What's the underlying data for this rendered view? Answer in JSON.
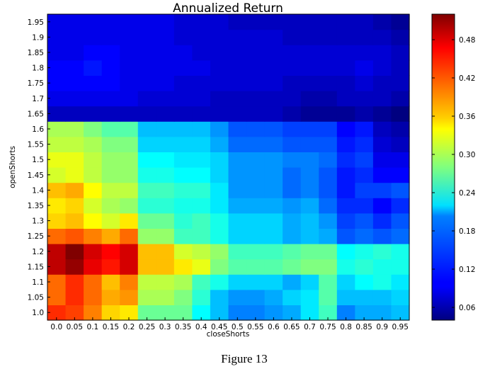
{
  "chart_data": {
    "type": "heatmap",
    "title": "Annualized Return",
    "xlabel": "closeShorts",
    "ylabel": "openShorts",
    "x_categories": [
      "0.0",
      "0.05",
      "0.1",
      "0.15",
      "0.2",
      "0.25",
      "0.3",
      "0.35",
      "0.4",
      "0.45",
      "0.5",
      "0.55",
      "0.6",
      "0.65",
      "0.7",
      "0.75",
      "0.8",
      "0.85",
      "0.9",
      "0.95"
    ],
    "y_categories": [
      "1.0",
      "1.05",
      "1.1",
      "1.15",
      "1.2",
      "1.25",
      "1.3",
      "1.35",
      "1.4",
      "1.45",
      "1.5",
      "1.55",
      "1.6",
      "1.65",
      "1.7",
      "1.75",
      "1.8",
      "1.85",
      "1.9",
      "1.95"
    ],
    "value_range": [
      0.04,
      0.52
    ],
    "colormap": "jet",
    "colorbar_ticks": [
      "0.06",
      "0.12",
      "0.18",
      "0.24",
      "0.30",
      "0.36",
      "0.42",
      "0.48"
    ],
    "colorbar_tick_values": [
      0.06,
      0.12,
      0.18,
      0.24,
      0.3,
      0.36,
      0.42,
      0.48
    ],
    "values": [
      [
        0.44,
        0.43,
        0.4,
        0.36,
        0.35,
        0.27,
        0.27,
        0.27,
        0.22,
        0.19,
        0.16,
        0.16,
        0.17,
        0.18,
        0.21,
        0.25,
        0.16,
        0.18,
        0.18,
        0.19
      ],
      [
        0.41,
        0.44,
        0.41,
        0.38,
        0.39,
        0.3,
        0.3,
        0.28,
        0.24,
        0.19,
        0.17,
        0.17,
        0.18,
        0.2,
        0.21,
        0.26,
        0.19,
        0.19,
        0.19,
        0.2
      ],
      [
        0.41,
        0.44,
        0.41,
        0.37,
        0.4,
        0.31,
        0.31,
        0.3,
        0.25,
        0.23,
        0.2,
        0.2,
        0.2,
        0.18,
        0.2,
        0.26,
        0.2,
        0.22,
        0.23,
        0.21
      ],
      [
        0.49,
        0.51,
        0.47,
        0.45,
        0.48,
        0.37,
        0.37,
        0.35,
        0.33,
        0.28,
        0.26,
        0.26,
        0.26,
        0.27,
        0.28,
        0.28,
        0.23,
        0.24,
        0.23,
        0.23
      ],
      [
        0.49,
        0.52,
        0.48,
        0.46,
        0.48,
        0.37,
        0.37,
        0.32,
        0.31,
        0.29,
        0.25,
        0.25,
        0.25,
        0.26,
        0.27,
        0.27,
        0.22,
        0.23,
        0.24,
        0.23
      ],
      [
        0.41,
        0.42,
        0.4,
        0.38,
        0.41,
        0.29,
        0.29,
        0.25,
        0.25,
        0.23,
        0.2,
        0.2,
        0.2,
        0.18,
        0.19,
        0.18,
        0.14,
        0.15,
        0.14,
        0.15
      ],
      [
        0.36,
        0.37,
        0.34,
        0.32,
        0.35,
        0.27,
        0.27,
        0.24,
        0.25,
        0.23,
        0.2,
        0.2,
        0.2,
        0.18,
        0.19,
        0.17,
        0.13,
        0.14,
        0.12,
        0.14
      ],
      [
        0.35,
        0.36,
        0.32,
        0.3,
        0.29,
        0.24,
        0.24,
        0.23,
        0.23,
        0.21,
        0.18,
        0.18,
        0.18,
        0.17,
        0.18,
        0.15,
        0.12,
        0.12,
        0.1,
        0.12
      ],
      [
        0.37,
        0.38,
        0.34,
        0.31,
        0.31,
        0.25,
        0.25,
        0.24,
        0.24,
        0.21,
        0.17,
        0.17,
        0.17,
        0.15,
        0.16,
        0.14,
        0.11,
        0.13,
        0.13,
        0.14
      ],
      [
        0.32,
        0.33,
        0.31,
        0.29,
        0.29,
        0.23,
        0.23,
        0.22,
        0.22,
        0.2,
        0.17,
        0.17,
        0.17,
        0.15,
        0.16,
        0.14,
        0.11,
        0.12,
        0.1,
        0.1
      ],
      [
        0.33,
        0.33,
        0.31,
        0.29,
        0.29,
        0.22,
        0.22,
        0.21,
        0.21,
        0.2,
        0.17,
        0.17,
        0.17,
        0.16,
        0.16,
        0.15,
        0.12,
        0.13,
        0.09,
        0.09
      ],
      [
        0.31,
        0.31,
        0.3,
        0.28,
        0.28,
        0.2,
        0.2,
        0.2,
        0.2,
        0.18,
        0.15,
        0.15,
        0.15,
        0.14,
        0.14,
        0.14,
        0.11,
        0.12,
        0.08,
        0.07
      ],
      [
        0.3,
        0.3,
        0.28,
        0.26,
        0.26,
        0.19,
        0.19,
        0.19,
        0.19,
        0.17,
        0.14,
        0.14,
        0.14,
        0.13,
        0.13,
        0.13,
        0.1,
        0.11,
        0.07,
        0.06
      ],
      [
        0.07,
        0.07,
        0.07,
        0.07,
        0.07,
        0.07,
        0.07,
        0.07,
        0.07,
        0.07,
        0.07,
        0.07,
        0.07,
        0.06,
        0.05,
        0.05,
        0.05,
        0.06,
        0.05,
        0.04
      ],
      [
        0.09,
        0.09,
        0.09,
        0.09,
        0.09,
        0.08,
        0.08,
        0.08,
        0.08,
        0.07,
        0.07,
        0.07,
        0.07,
        0.07,
        0.06,
        0.06,
        0.07,
        0.07,
        0.07,
        0.06
      ],
      [
        0.1,
        0.1,
        0.1,
        0.1,
        0.09,
        0.09,
        0.09,
        0.08,
        0.08,
        0.08,
        0.08,
        0.08,
        0.08,
        0.07,
        0.07,
        0.07,
        0.07,
        0.08,
        0.07,
        0.07
      ],
      [
        0.1,
        0.1,
        0.11,
        0.1,
        0.09,
        0.09,
        0.09,
        0.09,
        0.09,
        0.08,
        0.08,
        0.08,
        0.08,
        0.08,
        0.08,
        0.08,
        0.08,
        0.09,
        0.08,
        0.07
      ],
      [
        0.09,
        0.09,
        0.1,
        0.1,
        0.09,
        0.09,
        0.09,
        0.09,
        0.08,
        0.08,
        0.08,
        0.08,
        0.08,
        0.08,
        0.08,
        0.08,
        0.08,
        0.08,
        0.08,
        0.07
      ],
      [
        0.09,
        0.09,
        0.09,
        0.09,
        0.09,
        0.09,
        0.09,
        0.08,
        0.08,
        0.08,
        0.08,
        0.08,
        0.08,
        0.07,
        0.07,
        0.07,
        0.07,
        0.07,
        0.07,
        0.06
      ],
      [
        0.09,
        0.09,
        0.09,
        0.09,
        0.09,
        0.09,
        0.09,
        0.08,
        0.08,
        0.08,
        0.07,
        0.07,
        0.07,
        0.07,
        0.07,
        0.07,
        0.07,
        0.07,
        0.06,
        0.05
      ]
    ]
  },
  "caption": "Figure 13"
}
